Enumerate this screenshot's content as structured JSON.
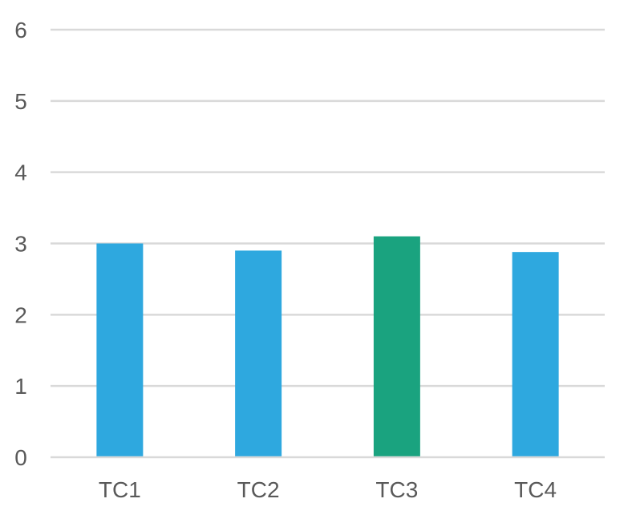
{
  "chart_data": {
    "type": "bar",
    "categories": [
      "TC1",
      "TC2",
      "TC3",
      "TC4"
    ],
    "values": [
      3.0,
      2.9,
      3.1,
      2.88
    ],
    "colors": [
      "#2ea8df",
      "#2ea8df",
      "#1aa37f",
      "#2ea8df"
    ],
    "title": "",
    "xlabel": "",
    "ylabel": "",
    "ylim": [
      0,
      6
    ],
    "yticks": [
      "0",
      "1",
      "2",
      "3",
      "4",
      "5",
      "6"
    ],
    "grid": true,
    "legend": "none"
  }
}
